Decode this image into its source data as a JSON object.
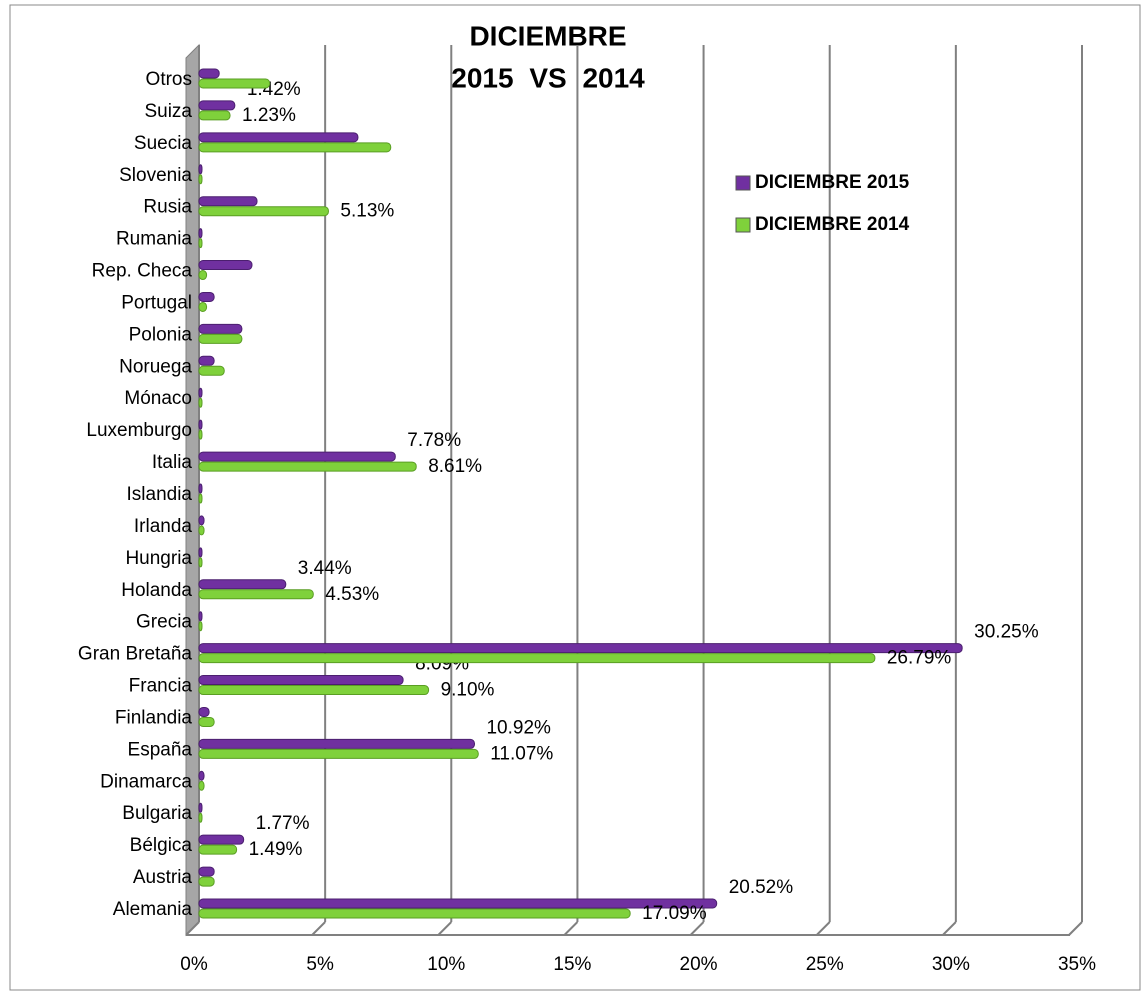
{
  "chart_data": {
    "type": "hbar",
    "title": [
      "DICIEMBRE",
      "2015 VS 2014"
    ],
    "categories": [
      "Alemania",
      "Austria",
      "Bélgica",
      "Bulgaria",
      "Dinamarca",
      "España",
      "Finlandia",
      "Francia",
      "Gran Bretaña",
      "Grecia",
      "Holanda",
      "Hungria",
      "Irlanda",
      "Islandia",
      "Italia",
      "Luxemburgo",
      "Mónaco",
      "Noruega",
      "Polonia",
      "Portugal",
      "Rep. Checa",
      "Rumania",
      "Rusia",
      "Slovenia",
      "Suecia",
      "Suiza",
      "Otros"
    ],
    "series": [
      {
        "name": "DICIEMBRE 2015",
        "color": "#7030a0",
        "values": [
          20.52,
          0.6,
          1.77,
          0.1,
          0.2,
          10.92,
          0.4,
          8.09,
          30.25,
          0.1,
          3.44,
          0.1,
          0.2,
          0.1,
          7.78,
          0.1,
          0.05,
          0.6,
          1.7,
          0.6,
          2.1,
          0.1,
          2.3,
          0.1,
          6.3,
          1.42,
          0.8
        ],
        "value_labels": [
          "20.52%",
          null,
          "1.77%",
          null,
          null,
          "10.92%",
          null,
          "8.09%",
          "30.25%",
          null,
          "3.44%",
          null,
          null,
          null,
          "7.78%",
          null,
          null,
          null,
          null,
          null,
          null,
          null,
          null,
          null,
          null,
          "1.42%",
          null
        ]
      },
      {
        "name": "DICIEMBRE 2014",
        "color": "#7fd13b",
        "values": [
          17.09,
          0.6,
          1.49,
          0.1,
          0.2,
          11.07,
          0.6,
          9.1,
          26.79,
          0.1,
          4.53,
          0.1,
          0.2,
          0.1,
          8.61,
          0.1,
          0.05,
          1.0,
          1.7,
          0.3,
          0.3,
          0.1,
          5.13,
          0.1,
          7.6,
          1.23,
          2.8
        ],
        "value_labels": [
          "17.09%",
          null,
          "1.49%",
          null,
          null,
          "11.07%",
          null,
          "9.10%",
          "26.79%",
          null,
          "4.53%",
          null,
          null,
          null,
          "8.61%",
          null,
          null,
          null,
          null,
          null,
          null,
          null,
          "5.13%",
          null,
          null,
          "1.23%",
          null
        ]
      }
    ],
    "xlim": [
      0,
      35
    ],
    "xticks": [
      {
        "value": 0,
        "label": "0%"
      },
      {
        "value": 5,
        "label": "5%"
      },
      {
        "value": 10,
        "label": "10%"
      },
      {
        "value": 15,
        "label": "15%"
      },
      {
        "value": 20,
        "label": "20%"
      },
      {
        "value": 25,
        "label": "25%"
      },
      {
        "value": 30,
        "label": "30%"
      },
      {
        "value": 35,
        "label": "35%"
      }
    ],
    "grid": true,
    "legend": "upper right"
  }
}
